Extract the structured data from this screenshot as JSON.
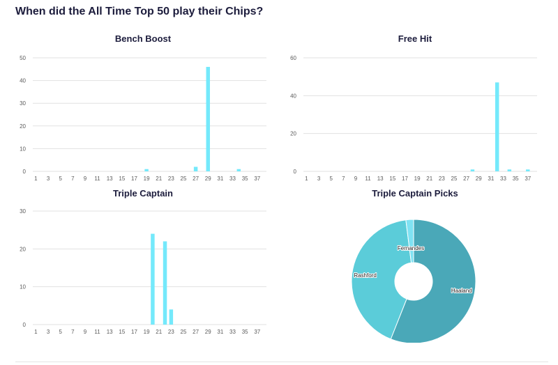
{
  "page": {
    "title": "When did the All Time Top 50 play their Chips?"
  },
  "colors": {
    "bar": "#74e9fb",
    "grid": "#e1e1e1",
    "pie_haaland": "#4aa8b8",
    "pie_rashford": "#5bccd9",
    "pie_fernandes": "#7fe2f3"
  },
  "chart_data": [
    {
      "type": "bar",
      "title": "Bench Boost",
      "xlabel": "",
      "ylabel": "",
      "ylim": [
        0,
        50
      ],
      "yticks": [
        0,
        10,
        20,
        30,
        40,
        50
      ],
      "x": [
        1,
        2,
        3,
        4,
        5,
        6,
        7,
        8,
        9,
        10,
        11,
        12,
        13,
        14,
        15,
        16,
        17,
        18,
        19,
        20,
        21,
        22,
        23,
        24,
        25,
        26,
        27,
        28,
        29,
        30,
        31,
        32,
        33,
        34,
        35,
        36,
        37,
        38
      ],
      "xtick_labels": [
        "1",
        "3",
        "5",
        "7",
        "9",
        "11",
        "13",
        "15",
        "17",
        "19",
        "21",
        "23",
        "25",
        "27",
        "29",
        "31",
        "33",
        "35",
        "37"
      ],
      "values": [
        0,
        0,
        0,
        0,
        0,
        0,
        0,
        0,
        0,
        0,
        0,
        0,
        0,
        0,
        0,
        0,
        0,
        0,
        1,
        0,
        0,
        0,
        0,
        0,
        0,
        0,
        2,
        0,
        46,
        0,
        0,
        0,
        0,
        1,
        0,
        0,
        0,
        0
      ],
      "grid": true
    },
    {
      "type": "bar",
      "title": "Free Hit",
      "xlabel": "",
      "ylabel": "",
      "ylim": [
        0,
        60
      ],
      "yticks": [
        0,
        20,
        40,
        60
      ],
      "x": [
        1,
        2,
        3,
        4,
        5,
        6,
        7,
        8,
        9,
        10,
        11,
        12,
        13,
        14,
        15,
        16,
        17,
        18,
        19,
        20,
        21,
        22,
        23,
        24,
        25,
        26,
        27,
        28,
        29,
        30,
        31,
        32,
        33,
        34,
        35,
        36,
        37,
        38
      ],
      "xtick_labels": [
        "1",
        "3",
        "5",
        "7",
        "9",
        "11",
        "13",
        "15",
        "17",
        "19",
        "21",
        "23",
        "25",
        "27",
        "29",
        "31",
        "33",
        "35",
        "37"
      ],
      "values": [
        0,
        0,
        0,
        0,
        0,
        0,
        0,
        0,
        0,
        0,
        0,
        0,
        0,
        0,
        0,
        0,
        0,
        0,
        0,
        0,
        0,
        0,
        0,
        0,
        0,
        0,
        0,
        1,
        0,
        0,
        0,
        47,
        0,
        1,
        0,
        0,
        1,
        0
      ],
      "grid": true
    },
    {
      "type": "bar",
      "title": "Triple Captain",
      "xlabel": "",
      "ylabel": "",
      "ylim": [
        0,
        30
      ],
      "yticks": [
        0,
        10,
        20,
        30
      ],
      "x": [
        1,
        2,
        3,
        4,
        5,
        6,
        7,
        8,
        9,
        10,
        11,
        12,
        13,
        14,
        15,
        16,
        17,
        18,
        19,
        20,
        21,
        22,
        23,
        24,
        25,
        26,
        27,
        28,
        29,
        30,
        31,
        32,
        33,
        34,
        35,
        36,
        37,
        38
      ],
      "xtick_labels": [
        "1",
        "3",
        "5",
        "7",
        "9",
        "11",
        "13",
        "15",
        "17",
        "19",
        "21",
        "23",
        "25",
        "27",
        "29",
        "31",
        "33",
        "35",
        "37"
      ],
      "values": [
        0,
        0,
        0,
        0,
        0,
        0,
        0,
        0,
        0,
        0,
        0,
        0,
        0,
        0,
        0,
        0,
        0,
        0,
        0,
        24,
        0,
        22,
        4,
        0,
        0,
        0,
        0,
        0,
        0,
        0,
        0,
        0,
        0,
        0,
        0,
        0,
        0,
        0
      ],
      "grid": true
    },
    {
      "type": "pie",
      "title": "Triple Captain Picks",
      "donut": true,
      "slices": [
        {
          "label": "Haaland",
          "value": 56
        },
        {
          "label": "Rashford",
          "value": 42
        },
        {
          "label": "Fernandes",
          "value": 2
        }
      ]
    }
  ]
}
